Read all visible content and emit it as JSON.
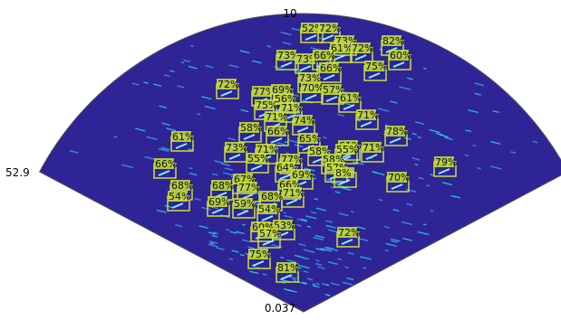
{
  "axis_labels": {
    "top": "10",
    "left": "52.9",
    "bottom": "0.037"
  },
  "detections": [
    "52%",
    "72%",
    "73%",
    "61%",
    "72%",
    "82%",
    "60%",
    "73%",
    "73%",
    "66%",
    "66%",
    "75%",
    "72%",
    "73%",
    "77%",
    "69%",
    "70%",
    "57%",
    "56%",
    "61%",
    "75%",
    "71%",
    "71%",
    "74%",
    "71%",
    "58%",
    "66%",
    "78%",
    "61%",
    "65%",
    "61%",
    "58%",
    "55%",
    "71%",
    "73%",
    "71%",
    "55%",
    "77%",
    "58%",
    "79%",
    "66%",
    "64%",
    "57%",
    "8%",
    "69%",
    "70%",
    "67%",
    "68%",
    "77%",
    "66%",
    "68%",
    "54%",
    "71%",
    "68%",
    "69%",
    "59%",
    "54%",
    "53%",
    "60%",
    "57%",
    "72%",
    "75%",
    "81%"
  ]
}
